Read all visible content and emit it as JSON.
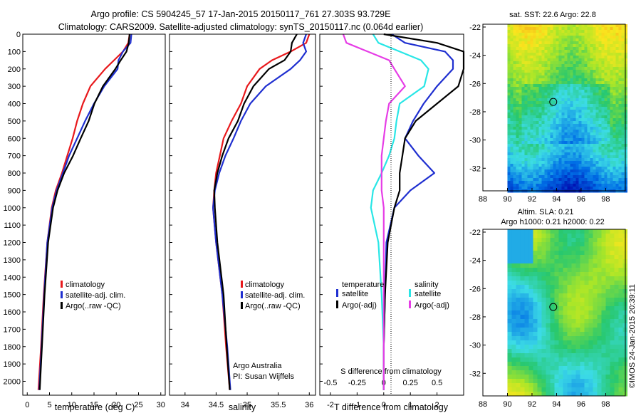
{
  "header": {
    "line1": "Argo profile: CS 5904245_57 17-Jan-2015 20150117_761 27.303S 93.729E",
    "line2": "Climatology: CARS2009. Satellite-adjusted climatology: synTS_20150117.nc (0.064d earlier)"
  },
  "colors": {
    "climatology": "#e8191c",
    "satellite": "#1f2fd0",
    "argo": "#000000",
    "satellite_salinity": "#29e6e6",
    "argo_salinity": "#e63de6"
  },
  "chart_data": [
    {
      "type": "line",
      "panel": "temperature",
      "xlabel": "temperature (deg C)",
      "ylabel": "",
      "xlim": [
        -1,
        31
      ],
      "ylim": [
        2080,
        0
      ],
      "x_ticks": [
        0,
        5,
        10,
        15,
        20,
        25,
        30
      ],
      "y_ticks": [
        0,
        100,
        200,
        300,
        400,
        500,
        600,
        700,
        800,
        900,
        1000,
        1100,
        1200,
        1300,
        1400,
        1500,
        1600,
        1700,
        1800,
        1900,
        2000
      ],
      "legend": [
        "climatology",
        "satellite-adj. clim.",
        "Argo(..raw -QC)"
      ],
      "series": [
        {
          "name": "climatology",
          "color": "#e8191c",
          "depth": [
            0,
            50,
            100,
            150,
            200,
            300,
            400,
            500,
            600,
            700,
            800,
            900,
            1000,
            1200,
            1500,
            1800,
            2050
          ],
          "values": [
            23,
            22.7,
            21.5,
            19.5,
            17.5,
            14.2,
            12.5,
            11.2,
            10.2,
            9.0,
            7.8,
            6.4,
            5.5,
            4.5,
            3.7,
            3.1,
            2.5
          ]
        },
        {
          "name": "satellite-adj. clim.",
          "color": "#1f2fd0",
          "depth": [
            0,
            50,
            100,
            150,
            200,
            300,
            400,
            500,
            600,
            700,
            800,
            900,
            1000,
            1200,
            1500,
            1800,
            2050
          ],
          "values": [
            23.4,
            23.2,
            21.5,
            20.5,
            20.3,
            17.3,
            15.0,
            13.0,
            11.2,
            9.4,
            8.0,
            6.6,
            5.6,
            4.5,
            3.8,
            3.2,
            2.7
          ]
        },
        {
          "name": "Argo(..raw -QC)",
          "color": "#000000",
          "depth": [
            0,
            50,
            100,
            150,
            200,
            300,
            400,
            500,
            600,
            700,
            800,
            900,
            1000,
            1200,
            1500,
            1800,
            2050
          ],
          "values": [
            23.0,
            22.8,
            22.3,
            21.0,
            19.8,
            17.0,
            15.1,
            13.8,
            12.0,
            10.3,
            8.3,
            6.8,
            5.8,
            4.7,
            3.9,
            3.3,
            2.8
          ]
        }
      ]
    },
    {
      "type": "line",
      "panel": "salinity",
      "xlabel": "salinity",
      "ylabel": "",
      "xlim": [
        33.75,
        36.1
      ],
      "ylim": [
        2080,
        0
      ],
      "x_ticks": [
        34,
        34.5,
        35,
        35.5,
        36
      ],
      "legend": [
        "climatology",
        "satellite-adj. clim.",
        "Argo(..raw -QC)"
      ],
      "series": [
        {
          "name": "climatology",
          "color": "#e8191c",
          "depth": [
            0,
            50,
            100,
            150,
            200,
            300,
            400,
            500,
            600,
            700,
            800,
            900,
            1000,
            1200,
            1500,
            1800,
            2050
          ],
          "values": [
            36.0,
            35.95,
            35.7,
            35.4,
            35.2,
            35.0,
            34.9,
            34.75,
            34.62,
            34.56,
            34.5,
            34.47,
            34.45,
            34.5,
            34.6,
            34.66,
            34.72
          ]
        },
        {
          "name": "satellite-adj. clim.",
          "color": "#1f2fd0",
          "depth": [
            0,
            50,
            100,
            150,
            200,
            300,
            400,
            500,
            600,
            700,
            800,
            900,
            1000,
            1200,
            1500,
            1800,
            2050
          ],
          "values": [
            35.95,
            35.9,
            35.95,
            35.85,
            35.7,
            35.3,
            35.05,
            34.9,
            34.78,
            34.65,
            34.55,
            34.48,
            34.45,
            34.5,
            34.6,
            34.68,
            34.73
          ]
        },
        {
          "name": "Argo(..raw -QC)",
          "color": "#000000",
          "depth": [
            0,
            50,
            100,
            150,
            200,
            300,
            400,
            500,
            600,
            700,
            800,
            900,
            1000,
            1200,
            1500,
            1800,
            2050
          ],
          "values": [
            35.8,
            35.72,
            35.7,
            35.6,
            35.35,
            35.1,
            34.95,
            34.85,
            34.7,
            34.6,
            34.52,
            34.47,
            34.48,
            34.52,
            34.62,
            34.67,
            34.72
          ]
        }
      ],
      "annotations": [
        "Argo Australia",
        "PI: Susan Wijffels"
      ]
    },
    {
      "type": "line",
      "panel": "differences",
      "xlabel": "T difference from climatology",
      "x2label": "S difference from climatology",
      "xlim": [
        -2.4,
        3
      ],
      "ylim": [
        2080,
        0
      ],
      "x_ticks": [
        -2,
        -1,
        0,
        1,
        2
      ],
      "x_tick_labels": [
        "-2",
        "-1",
        "0",
        "1",
        "2"
      ],
      "x2_ticks": [
        -0.5,
        -0.25,
        0,
        0.25,
        0.5
      ],
      "x2_tick_labels": [
        "-0.5",
        "-0.25",
        "0",
        "0.25",
        "0.5"
      ],
      "legend_temperature": {
        "title": "temperature",
        "items": [
          "satellite",
          "Argo(-adj)"
        ]
      },
      "legend_salinity": {
        "title": "salinity",
        "items": [
          "satellite",
          "Argo(-adj)"
        ]
      },
      "series": [
        {
          "name": "satellite",
          "group": "temperature",
          "color": "#1f2fd0",
          "depth": [
            0,
            50,
            100,
            150,
            200,
            300,
            400,
            500,
            600,
            700,
            800,
            900,
            1000,
            1200,
            1500,
            1800,
            2050
          ],
          "values": [
            0.3,
            0.8,
            2.3,
            2.6,
            2.6,
            2.0,
            1.5,
            1.1,
            0.8,
            1.3,
            1.9,
            1.0,
            0.4,
            0.1,
            0.05,
            0,
            0
          ]
        },
        {
          "name": "Argo(-adj)",
          "group": "temperature",
          "color": "#000000",
          "depth": [
            0,
            50,
            100,
            150,
            200,
            300,
            400,
            500,
            600,
            700,
            800,
            900,
            1000,
            1200,
            1500,
            1800,
            2050
          ],
          "values": [
            0,
            2.0,
            3.0,
            3.0,
            3.0,
            2.8,
            2.0,
            1.2,
            0.8,
            0.7,
            0.6,
            0.6,
            0.4,
            0.15,
            0.05,
            0,
            0
          ]
        },
        {
          "name": "satellite",
          "group": "salinity",
          "color": "#29e6e6",
          "depth": [
            0,
            50,
            100,
            150,
            200,
            300,
            400,
            500,
            600,
            700,
            800,
            900,
            1000,
            1200,
            1500,
            1800,
            2050
          ],
          "values": [
            -0.1,
            -0.05,
            0.15,
            0.35,
            0.42,
            0.38,
            0.15,
            0.12,
            0.1,
            0.05,
            -0.02,
            -0.1,
            -0.12,
            -0.05,
            -0.02,
            0,
            0
          ]
        },
        {
          "name": "Argo(-adj)",
          "group": "salinity",
          "color": "#e63de6",
          "depth": [
            0,
            50,
            100,
            150,
            200,
            300,
            400,
            500,
            600,
            700,
            800,
            900,
            1000,
            1200,
            1500,
            1800,
            2050
          ],
          "values": [
            -0.38,
            -0.35,
            -0.15,
            0.05,
            0.1,
            0.2,
            0.05,
            0.02,
            0.0,
            -0.02,
            -0.02,
            -0.02,
            0.0,
            0.0,
            0.0,
            0.0,
            0.0
          ]
        }
      ]
    },
    {
      "type": "heatmap",
      "panel": "sst-map",
      "title": "sat. SST: 22.6  Argo: 22.8",
      "xlim": [
        88,
        99.6
      ],
      "ylim": [
        -33.6,
        -21.8
      ],
      "x_ticks": [
        88,
        90,
        92,
        94,
        96,
        98
      ],
      "y_ticks": [
        -22,
        -24,
        -26,
        -28,
        -30,
        -32
      ],
      "argo_position": {
        "lon": 93.729,
        "lat": -27.303
      }
    },
    {
      "type": "heatmap",
      "panel": "sla-map",
      "title": "Altim. SLA: 0.21",
      "subtitle": "Argo h1000: 0.21 h2000: 0.22",
      "xlim": [
        88,
        99.6
      ],
      "ylim": [
        -33.6,
        -21.8
      ],
      "x_ticks": [
        88,
        90,
        92,
        94,
        96,
        98
      ],
      "y_ticks": [
        -22,
        -24,
        -26,
        -28,
        -30,
        -32
      ],
      "argo_position": {
        "lon": 93.729,
        "lat": -27.303
      }
    }
  ],
  "credit": "©IMOS 24-Jan-2015 20:39:11"
}
